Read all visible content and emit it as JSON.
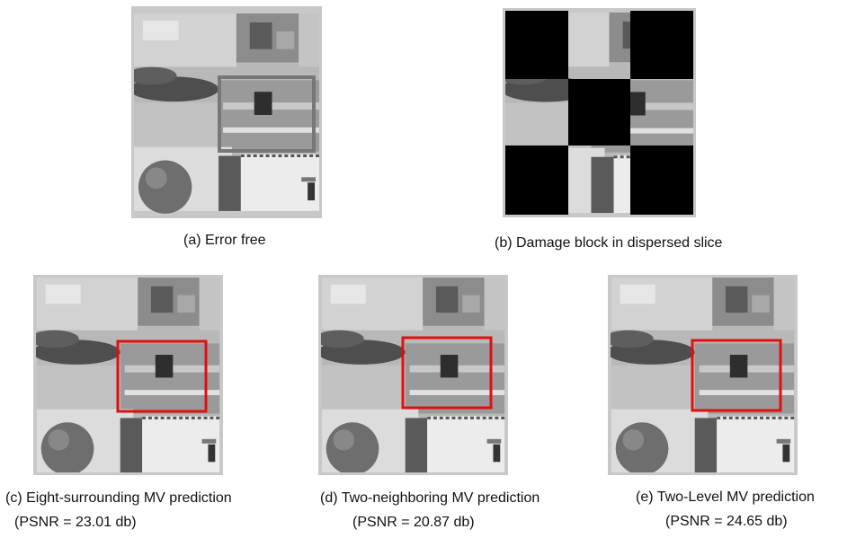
{
  "panels": [
    {
      "caption": "(a) Error free"
    },
    {
      "caption": "(b) Damage block in dispersed slice"
    },
    {
      "caption": "(c) Eight-surrounding MV prediction",
      "psnr": "(PSNR = 23.01 db)"
    },
    {
      "caption": "(d) Two-neighboring MV prediction",
      "psnr": "(PSNR = 20.87 db)"
    },
    {
      "caption": "(e) Two-Level MV prediction",
      "psnr": "(PSNR = 24.65 db)"
    }
  ]
}
